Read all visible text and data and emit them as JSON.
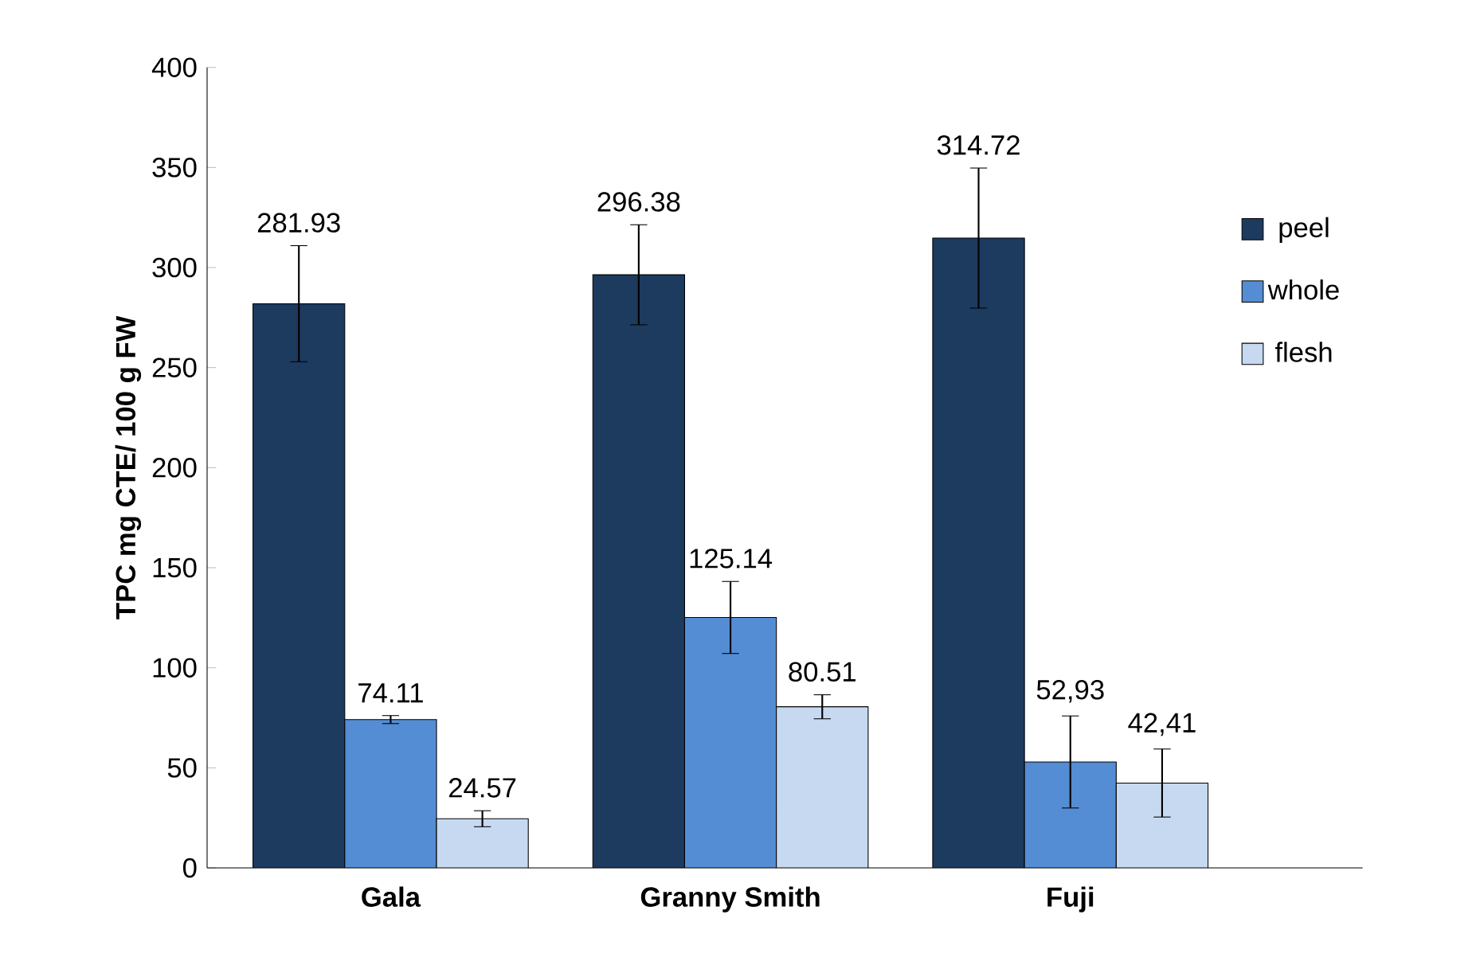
{
  "chart_data": {
    "type": "bar",
    "ylabel": "TPC  mg CTE/ 100 g  FW",
    "categories": [
      "Gala",
      "Granny Smith",
      "Fuji"
    ],
    "series": [
      {
        "name": "peel",
        "color": "#1d3a5f",
        "values": [
          281.93,
          296.38,
          314.72
        ],
        "errors": [
          29,
          25,
          35
        ],
        "value_labels": [
          "281.93",
          "296.38",
          "314.72"
        ]
      },
      {
        "name": "whole",
        "color": "#548dd4",
        "values": [
          74.11,
          125.14,
          52.93
        ],
        "errors": [
          2,
          18,
          23
        ],
        "value_labels": [
          "74.11",
          "125.14",
          "52,93"
        ]
      },
      {
        "name": "flesh",
        "color": "#c6d9f1",
        "values": [
          24.57,
          80.51,
          42.41
        ],
        "errors": [
          4,
          6,
          17
        ],
        "value_labels": [
          "24.57",
          "80.51",
          "42,41"
        ]
      }
    ],
    "ylim": [
      0,
      400
    ],
    "yticks": [
      0,
      50,
      100,
      150,
      200,
      250,
      300,
      350,
      400
    ],
    "grid": false,
    "legend": "right"
  }
}
